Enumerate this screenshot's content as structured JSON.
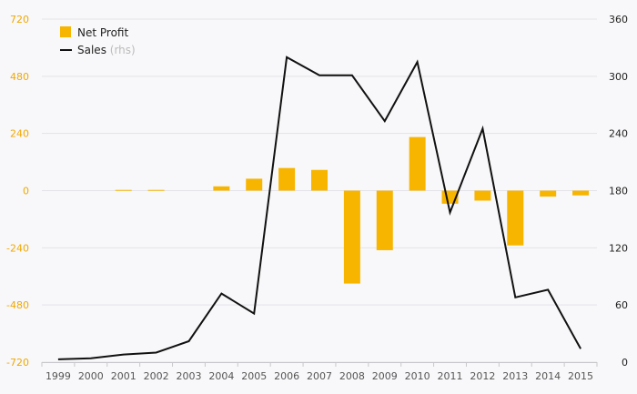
{
  "chart_data": {
    "type": "bar",
    "categories": [
      "1999",
      "2000",
      "2001",
      "2002",
      "2003",
      "2004",
      "2005",
      "2006",
      "2007",
      "2008",
      "2009",
      "2010",
      "2011",
      "2012",
      "2013",
      "2014",
      "2015"
    ],
    "series": [
      {
        "name": "Net Profit",
        "type": "bar",
        "axis": "left",
        "color": "#f7b500",
        "values": [
          0,
          0,
          3,
          3,
          0,
          18,
          50,
          95,
          87,
          -390,
          -250,
          225,
          -55,
          -42,
          -230,
          -25,
          -20
        ]
      },
      {
        "name": "Sales",
        "type": "line",
        "axis": "right",
        "color": "#111111",
        "values": [
          3,
          4,
          8,
          10,
          22,
          72,
          51,
          320,
          301,
          301,
          253,
          315,
          157,
          245,
          68,
          76,
          14
        ]
      }
    ],
    "legend": {
      "placement": "top-left",
      "items": [
        {
          "label": "Net Profit",
          "suffix": ""
        },
        {
          "label": "Sales",
          "suffix": "(rhs)"
        }
      ]
    },
    "left_axis": {
      "ylim": [
        -720,
        720
      ],
      "ticks": [
        -720,
        -480,
        -240,
        0,
        240,
        480,
        720
      ],
      "tick_labels": [
        "-720",
        "-480",
        "-240",
        "0",
        "240",
        "480",
        "720"
      ],
      "color": "#f0a800"
    },
    "right_axis": {
      "ylim": [
        0,
        360
      ],
      "ticks": [
        0,
        60,
        120,
        180,
        240,
        300,
        360
      ],
      "tick_labels": [
        "0",
        "60",
        "120",
        "180",
        "240",
        "300",
        "360"
      ],
      "color": "#222222"
    },
    "grid": true
  }
}
